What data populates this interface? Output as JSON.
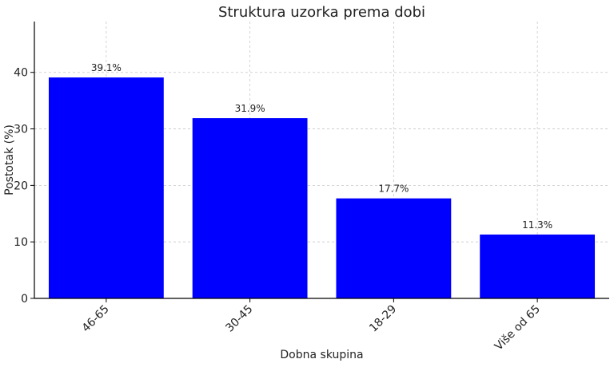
{
  "chart_data": {
    "type": "bar",
    "title": "Struktura uzorka prema dobi",
    "xlabel": "Dobna skupina",
    "ylabel": "Postotak (%)",
    "categories": [
      "46-65",
      "30-45",
      "18-29",
      "Više od 65"
    ],
    "values": [
      39.1,
      31.9,
      17.7,
      11.3
    ],
    "value_labels": [
      "39.1%",
      "31.9%",
      "17.7%",
      "11.3%"
    ],
    "ylim": [
      0,
      49
    ],
    "yticks": [
      0,
      10,
      20,
      30,
      40
    ],
    "grid": true,
    "colors": {
      "bar": "#0000ff",
      "grid": "#c8c8c8",
      "axis": "#000000",
      "text": "#222222"
    }
  }
}
